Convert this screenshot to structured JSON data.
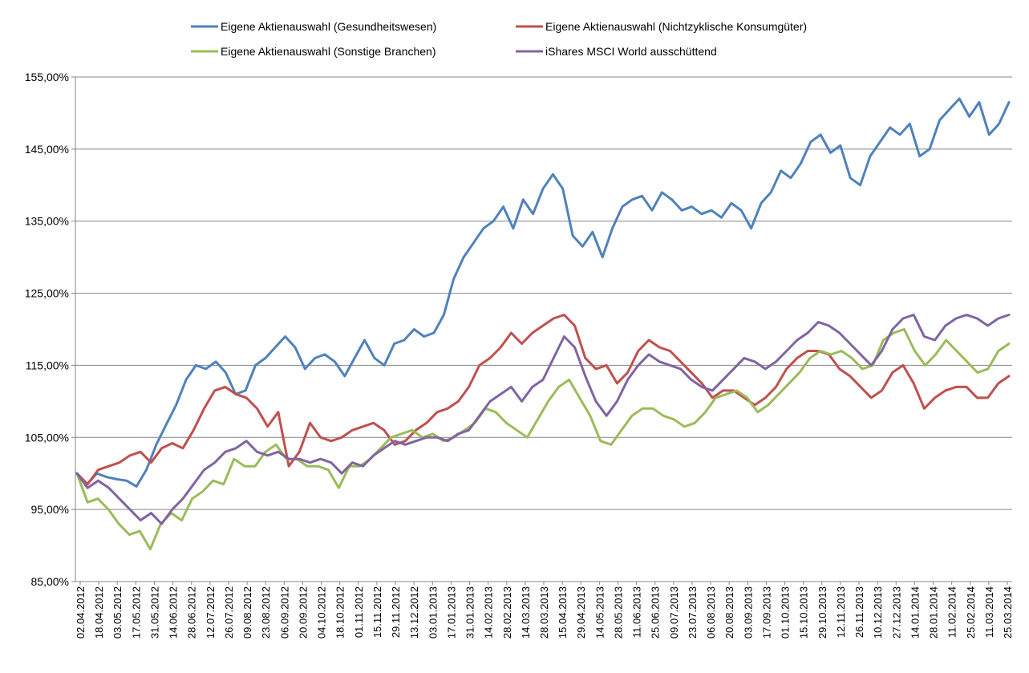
{
  "chart_data": {
    "type": "line",
    "title": "",
    "xlabel": "",
    "ylabel": "",
    "y_tick_labels": [
      "85,00%",
      "95,00%",
      "105,00%",
      "115,00%",
      "125,00%",
      "135,00%",
      "145,00%",
      "155,00%"
    ],
    "ylim": [
      85,
      155
    ],
    "y_ticks": [
      85,
      95,
      105,
      115,
      125,
      135,
      145,
      155
    ],
    "grid": "horizontal",
    "legend_position": "top",
    "x_tick_labels": [
      "02.04.2012",
      "18.04.2012",
      "03.05.2012",
      "17.05.2012",
      "31.05.2012",
      "14.06.2012",
      "28.06.2012",
      "12.07.2012",
      "26.07.2012",
      "09.08.2012",
      "23.08.2012",
      "06.09.2012",
      "20.09.2012",
      "04.10.2012",
      "18.10.2012",
      "01.11.2012",
      "15.11.2012",
      "29.11.2012",
      "13.12.2012",
      "03.01.2013",
      "17.01.2013",
      "31.01.2013",
      "14.02.2013",
      "28.02.2013",
      "14.03.2013",
      "28.03.2013",
      "15.04.2013",
      "29.04.2013",
      "14.05.2013",
      "28.05.2013",
      "11.06.2013",
      "25.06.2013",
      "09.07.2013",
      "23.07.2013",
      "06.08.2013",
      "20.08.2013",
      "03.09.2013",
      "17.09.2013",
      "01.10.2013",
      "15.10.2013",
      "29.10.2013",
      "12.11.2013",
      "26.11.2013",
      "10.12.2013",
      "27.12.2013",
      "14.01.2014",
      "28.01.2014",
      "11.02.2014",
      "25.02.2014",
      "11.03.2014",
      "25.03.2014"
    ],
    "series": [
      {
        "name": "Eigene Aktienauswahl (Gesundheitswesen)",
        "color": "#4F81BD",
        "values": [
          100,
          98.5,
          100,
          99.5,
          99.2,
          99,
          98.2,
          100.5,
          104,
          106.8,
          109.5,
          113,
          115,
          114.5,
          115.5,
          114,
          111,
          111.5,
          115,
          116,
          117.5,
          119,
          117.5,
          114.5,
          116,
          116.5,
          115.5,
          113.5,
          116,
          118.5,
          116,
          115,
          118,
          118.5,
          120,
          119,
          119.5,
          122,
          127,
          130,
          132,
          134,
          135,
          137,
          134,
          138,
          136,
          139.5,
          141.5,
          139.5,
          133,
          131.5,
          133.5,
          130,
          134,
          137,
          138,
          138.5,
          136.5,
          139,
          138,
          136.5,
          137,
          136,
          136.5,
          135.5,
          137.5,
          136.5,
          134,
          137.5,
          139,
          142,
          141,
          143,
          146,
          147,
          144.5,
          145.5,
          141,
          140,
          144,
          146,
          148,
          147,
          148.5,
          144,
          145,
          149,
          150.5,
          152,
          149.5,
          151.5,
          147,
          148.5,
          151.5
        ]
      },
      {
        "name": "Eigene Aktienauswahl (Nichtzyklische Konsumgüter)",
        "color": "#C0504D",
        "values": [
          100,
          98.5,
          100.5,
          101,
          101.5,
          102.5,
          103,
          101.5,
          103.5,
          104.2,
          103.5,
          106,
          109,
          111.5,
          112,
          111,
          110.5,
          109,
          106.5,
          108.5,
          101,
          103,
          107,
          105,
          104.5,
          105,
          106,
          106.5,
          107,
          106,
          104,
          104.5,
          106,
          107,
          108.5,
          109,
          110,
          112,
          115,
          116,
          117.5,
          119.5,
          118,
          119.5,
          120.5,
          121.5,
          122,
          120.5,
          116,
          114.5,
          115,
          112.5,
          114,
          117,
          118.5,
          117.5,
          117,
          115.5,
          114,
          112.5,
          110.5,
          111.5,
          111.5,
          110.5,
          109.5,
          110.5,
          112,
          114.5,
          116,
          117,
          117,
          116.5,
          114.5,
          113.5,
          112,
          110.5,
          111.5,
          114,
          115,
          112.5,
          109,
          110.5,
          111.5,
          112,
          112,
          110.5,
          110.5,
          112.5,
          113.5
        ]
      },
      {
        "name": "Eigene Aktienauswahl (Sonstige Branchen)",
        "color": "#9BBB59",
        "values": [
          100,
          96,
          96.5,
          95,
          93,
          91.5,
          92,
          89.5,
          93,
          94.5,
          93.5,
          96.5,
          97.5,
          99,
          98.5,
          102,
          101,
          101,
          103,
          104,
          102,
          102,
          101,
          101,
          100.5,
          98,
          101,
          101,
          102,
          103.5,
          105,
          105.5,
          106,
          105,
          105.5,
          104.5,
          105,
          106,
          107,
          109,
          108.5,
          107,
          106,
          105,
          107.5,
          110,
          112,
          113,
          110.5,
          108,
          104.5,
          104,
          106,
          108,
          109,
          109,
          108,
          107.5,
          106.5,
          107,
          108.5,
          110.5,
          111,
          111.5,
          110.5,
          108.5,
          109.5,
          111,
          112.5,
          114,
          116,
          117,
          116.5,
          117,
          116,
          114.5,
          115,
          118.5,
          119.5,
          120,
          117,
          115,
          116.5,
          118.5,
          117,
          115.5,
          114,
          114.5,
          117,
          118
        ]
      },
      {
        "name": "iShares MSCI World ausschüttend",
        "color": "#8064A2",
        "values": [
          100,
          98,
          99,
          98,
          96.5,
          95,
          93.5,
          94.5,
          93,
          95,
          96.5,
          98.5,
          100.5,
          101.5,
          103,
          103.5,
          104.5,
          103,
          102.5,
          103,
          102,
          102,
          101.5,
          102,
          101.5,
          100,
          101.5,
          101,
          102.5,
          103.5,
          104.5,
          104,
          104.5,
          105,
          105,
          104.5,
          105.5,
          106,
          108,
          110,
          111,
          112,
          110,
          112,
          113,
          116,
          119,
          117.5,
          113.5,
          110,
          108,
          110,
          113,
          115,
          116.5,
          115.5,
          115,
          114.5,
          113,
          112,
          111.5,
          113,
          114.5,
          116,
          115.5,
          114.5,
          115.5,
          117,
          118.5,
          119.5,
          121,
          120.5,
          119.5,
          118,
          116.5,
          115,
          117,
          120,
          121.5,
          122,
          119,
          118.5,
          120.5,
          121.5,
          122,
          121.5,
          120.5,
          121.5,
          122
        ]
      }
    ]
  }
}
